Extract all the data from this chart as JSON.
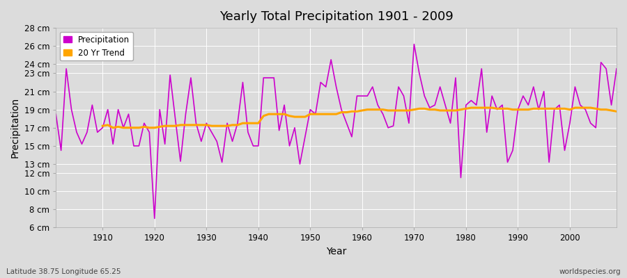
{
  "title": "Yearly Total Precipitation 1901 - 2009",
  "xlabel": "Year",
  "ylabel": "Precipitation",
  "subtitle_left": "Latitude 38.75 Longitude 65.25",
  "subtitle_right": "worldspecies.org",
  "precip_color": "#CC00CC",
  "trend_color": "#FFA500",
  "bg_color": "#DCDCDC",
  "legend_precip": "Precipitation",
  "legend_trend": "20 Yr Trend",
  "ylim": [
    6,
    28
  ],
  "yticks": [
    6,
    8,
    10,
    12,
    13,
    15,
    17,
    19,
    21,
    23,
    24,
    26,
    28
  ],
  "years": [
    1901,
    1902,
    1903,
    1904,
    1905,
    1906,
    1907,
    1908,
    1909,
    1910,
    1911,
    1912,
    1913,
    1914,
    1915,
    1916,
    1917,
    1918,
    1919,
    1920,
    1921,
    1922,
    1923,
    1924,
    1925,
    1926,
    1927,
    1928,
    1929,
    1930,
    1931,
    1932,
    1933,
    1934,
    1935,
    1936,
    1937,
    1938,
    1939,
    1940,
    1941,
    1942,
    1943,
    1944,
    1945,
    1946,
    1947,
    1948,
    1949,
    1950,
    1951,
    1952,
    1953,
    1954,
    1955,
    1956,
    1957,
    1958,
    1959,
    1960,
    1961,
    1962,
    1963,
    1964,
    1965,
    1966,
    1967,
    1968,
    1969,
    1970,
    1971,
    1972,
    1973,
    1974,
    1975,
    1976,
    1977,
    1978,
    1979,
    1980,
    1981,
    1982,
    1983,
    1984,
    1985,
    1986,
    1987,
    1988,
    1989,
    1990,
    1991,
    1992,
    1993,
    1994,
    1995,
    1996,
    1997,
    1998,
    1999,
    2000,
    2001,
    2002,
    2003,
    2004,
    2005,
    2006,
    2007,
    2008,
    2009
  ],
  "precip": [
    18.5,
    14.5,
    23.5,
    19.0,
    16.5,
    15.2,
    16.5,
    19.5,
    16.5,
    17.0,
    19.0,
    15.2,
    19.0,
    17.0,
    18.5,
    15.0,
    15.0,
    17.5,
    16.5,
    7.0,
    19.0,
    15.2,
    22.8,
    18.0,
    13.3,
    18.5,
    22.5,
    17.5,
    15.5,
    17.5,
    16.5,
    15.5,
    13.2,
    17.5,
    15.5,
    17.5,
    22.0,
    16.5,
    15.0,
    15.0,
    22.5,
    22.5,
    22.5,
    16.7,
    19.5,
    15.0,
    17.0,
    13.0,
    16.0,
    19.0,
    18.5,
    22.0,
    21.5,
    24.5,
    21.5,
    19.0,
    17.5,
    16.0,
    20.5,
    20.5,
    20.5,
    21.5,
    19.5,
    18.5,
    17.0,
    17.2,
    21.5,
    20.5,
    17.5,
    26.2,
    23.0,
    20.5,
    19.2,
    19.5,
    21.5,
    19.5,
    17.5,
    22.5,
    11.5,
    19.5,
    20.0,
    19.5,
    23.5,
    16.5,
    20.5,
    19.0,
    19.5,
    13.2,
    14.5,
    19.0,
    20.5,
    19.5,
    21.5,
    19.0,
    21.0,
    13.2,
    19.0,
    19.5,
    14.5,
    17.5,
    21.5,
    19.5,
    19.0,
    17.5,
    17.0,
    24.2,
    23.5,
    19.5,
    23.5
  ],
  "trend_years": [
    1910,
    1911,
    1912,
    1913,
    1914,
    1915,
    1916,
    1917,
    1918,
    1919,
    1920,
    1921,
    1922,
    1923,
    1924,
    1925,
    1926,
    1927,
    1928,
    1929,
    1930,
    1931,
    1932,
    1933,
    1934,
    1935,
    1936,
    1937,
    1938,
    1939,
    1940,
    1941,
    1942,
    1943,
    1944,
    1945,
    1946,
    1947,
    1948,
    1949,
    1950,
    1951,
    1952,
    1953,
    1954,
    1955,
    1956,
    1957,
    1958,
    1959,
    1960,
    1961,
    1962,
    1963,
    1964,
    1965,
    1966,
    1967,
    1968,
    1969,
    1970,
    1971,
    1972,
    1973,
    1974,
    1975,
    1976,
    1977,
    1978,
    1979,
    1980,
    1981,
    1982,
    1983,
    1984,
    1985,
    1986,
    1987,
    1988,
    1989,
    1990,
    1991,
    1992,
    1993,
    1994,
    1995,
    1996,
    1997,
    1998,
    1999,
    2000,
    2001,
    2002,
    2003,
    2004,
    2005,
    2006,
    2007,
    2008,
    2009
  ],
  "trend": [
    17.2,
    17.3,
    17.0,
    17.1,
    17.0,
    17.0,
    17.0,
    17.0,
    17.1,
    17.0,
    17.0,
    17.1,
    17.2,
    17.2,
    17.2,
    17.3,
    17.3,
    17.3,
    17.3,
    17.3,
    17.3,
    17.2,
    17.2,
    17.2,
    17.2,
    17.3,
    17.3,
    17.5,
    17.5,
    17.5,
    17.5,
    18.3,
    18.5,
    18.5,
    18.5,
    18.5,
    18.3,
    18.2,
    18.2,
    18.2,
    18.5,
    18.5,
    18.5,
    18.5,
    18.5,
    18.5,
    18.7,
    18.7,
    18.8,
    18.8,
    18.9,
    19.0,
    19.0,
    19.0,
    19.0,
    18.9,
    18.9,
    18.9,
    18.9,
    18.9,
    19.0,
    19.1,
    19.1,
    19.0,
    19.0,
    18.9,
    18.9,
    18.9,
    18.9,
    19.0,
    19.1,
    19.2,
    19.2,
    19.2,
    19.2,
    19.2,
    19.1,
    19.1,
    19.1,
    19.0,
    19.0,
    19.0,
    19.0,
    19.1,
    19.1,
    19.1,
    19.1,
    19.1,
    19.1,
    19.1,
    19.0,
    19.2,
    19.2,
    19.2,
    19.2,
    19.1,
    19.0,
    19.0,
    18.9,
    18.8
  ]
}
